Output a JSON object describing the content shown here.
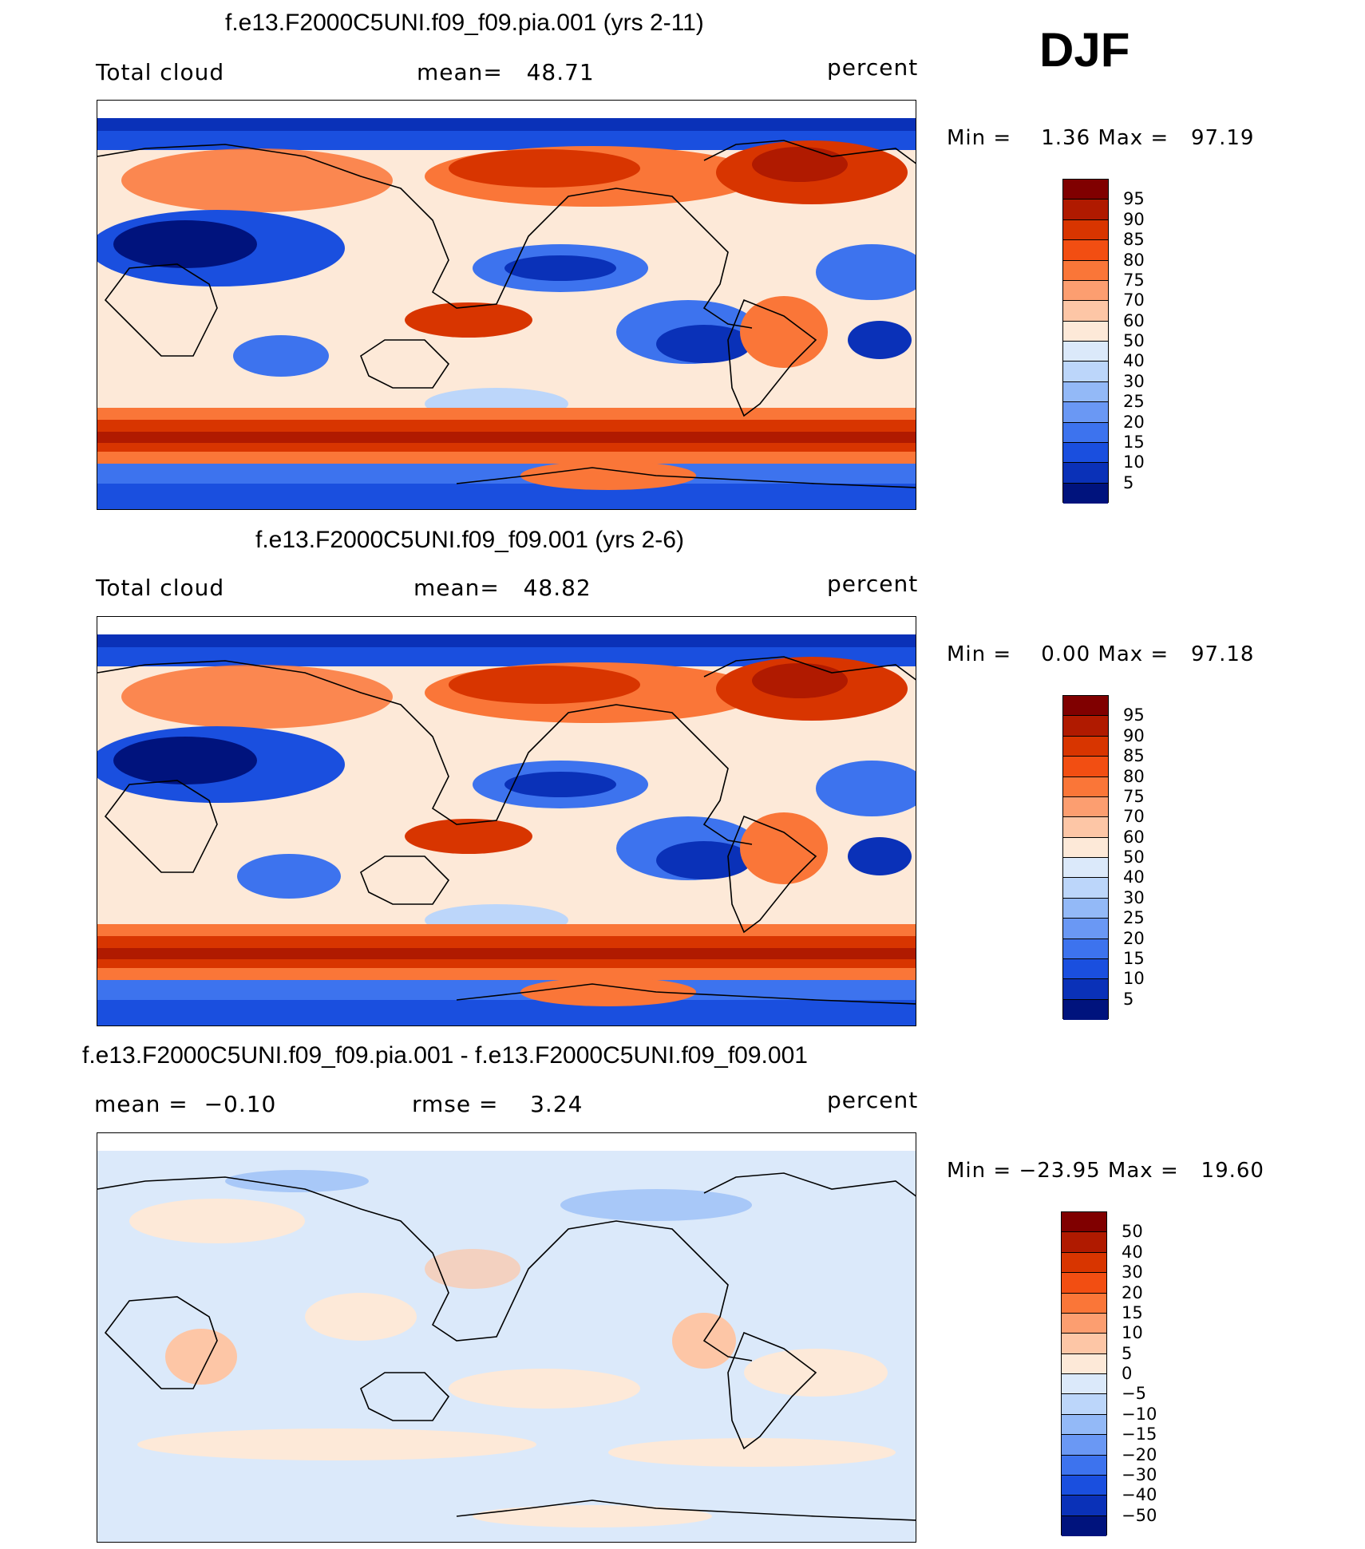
{
  "season": "DJF",
  "panels": [
    {
      "title": "f.e13.F2000C5UNI.f09_f09.pia.001 (yrs 2-11)",
      "left_label": "Total cloud",
      "center_label": "mean=   48.71",
      "right_label": "percent",
      "min_max": "Min =    1.36 Max =   97.19",
      "colorbar_labels": [
        "95",
        "90",
        "85",
        "80",
        "75",
        "70",
        "60",
        "50",
        "40",
        "30",
        "25",
        "20",
        "15",
        "10",
        "5"
      ],
      "kind": "field"
    },
    {
      "title": "f.e13.F2000C5UNI.f09_f09.001 (yrs 2-6)",
      "left_label": "Total cloud",
      "center_label": "mean=   48.82",
      "right_label": "percent",
      "min_max": "Min =    0.00 Max =   97.18",
      "colorbar_labels": [
        "95",
        "90",
        "85",
        "80",
        "75",
        "70",
        "60",
        "50",
        "40",
        "30",
        "25",
        "20",
        "15",
        "10",
        "5"
      ],
      "kind": "field"
    },
    {
      "title": "f.e13.F2000C5UNI.f09_f09.pia.001 - f.e13.F2000C5UNI.f09_f09.001",
      "left_label": "mean =  −0.10",
      "center_label": "rmse =    3.24",
      "right_label": "percent",
      "min_max": "Min = −23.95 Max =   19.60",
      "colorbar_labels": [
        "50",
        "40",
        "30",
        "20",
        "15",
        "10",
        "5",
        "0",
        "−5",
        "−10",
        "−15",
        "−20",
        "−30",
        "−40",
        "−50"
      ],
      "kind": "diff"
    }
  ],
  "colorbar_colors": [
    "#800000",
    "#b01a00",
    "#d83500",
    "#f24e12",
    "#fa7638",
    "#fc9e70",
    "#fdc6a6",
    "#fde9d8",
    "#dbe9fa",
    "#bcd6fa",
    "#93b9f7",
    "#6a98f4",
    "#3d73ee",
    "#1a4fdf",
    "#0a31b8",
    "#00137d"
  ],
  "map_colors": {
    "field": {
      "base": "#fde9d8",
      "red": "#d83500",
      "darkred": "#b01a00",
      "orange": "#fa7638",
      "salmon": "#fdc6a6",
      "lightblue": "#bcd6fa",
      "blue": "#3d73ee",
      "darkblue": "#0a31b8",
      "navy": "#00137d"
    },
    "diff": {
      "base": "#dbe9fa",
      "light": "#fde9d8",
      "salmon": "#fdc6a6",
      "blue": "#93b9f7"
    }
  }
}
